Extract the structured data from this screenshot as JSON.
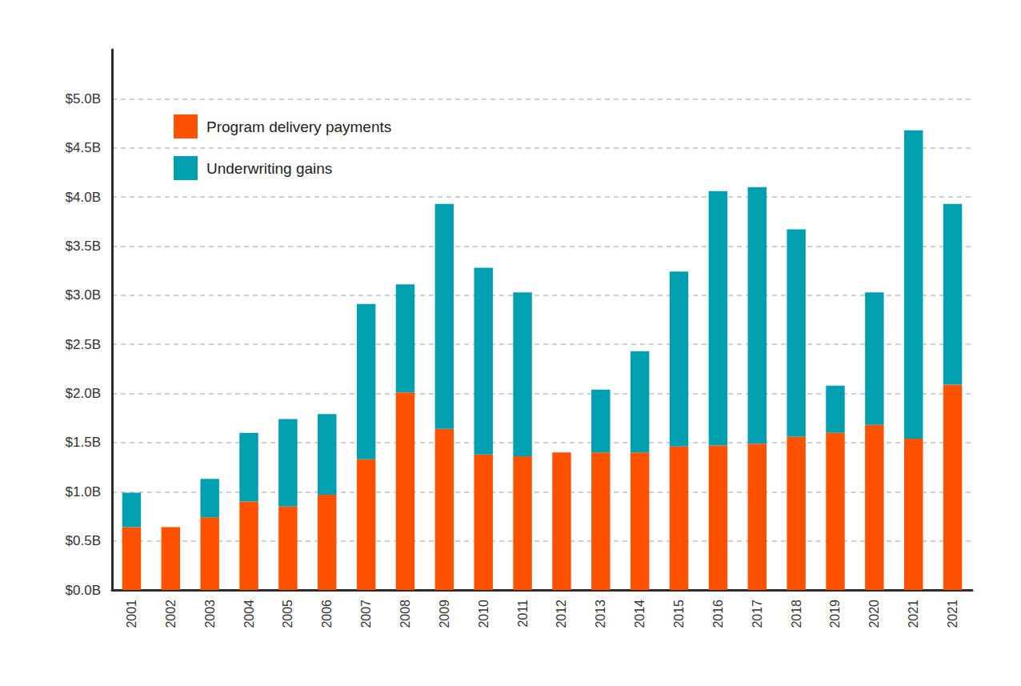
{
  "chart_data": {
    "type": "bar",
    "stacked": true,
    "grid": true,
    "legend": "upper left",
    "categories": [
      "2001",
      "2002",
      "2003",
      "2004",
      "2005",
      "2006",
      "2007",
      "2008",
      "2009",
      "2010",
      "2011",
      "2012",
      "2013",
      "2014",
      "2015",
      "2016",
      "2017",
      "2018",
      "2019",
      "2020",
      "2021",
      "2021"
    ],
    "series": [
      {
        "name": "Program delivery payments",
        "color": "#ff5100",
        "values": [
          0.64,
          0.64,
          0.74,
          0.9,
          0.85,
          0.97,
          1.33,
          2.01,
          1.64,
          1.38,
          1.36,
          1.4,
          1.4,
          1.4,
          1.46,
          1.47,
          1.49,
          1.56,
          1.6,
          1.68,
          1.54,
          2.09
        ]
      },
      {
        "name": "Underwriting gains",
        "color": "#00a0b0",
        "values": [
          0.35,
          0,
          0.39,
          0.7,
          0.89,
          0.82,
          1.58,
          1.1,
          2.29,
          1.9,
          1.67,
          0,
          0.64,
          1.03,
          1.78,
          2.59,
          2.61,
          2.11,
          0.48,
          1.35,
          3.14,
          1.84
        ]
      }
    ],
    "ylim": [
      0,
      5.5
    ],
    "yticks": [
      {
        "value": 0,
        "label": "$0.0B"
      },
      {
        "value": 0.5,
        "label": "$0.5B"
      },
      {
        "value": 1,
        "label": "$1.0B"
      },
      {
        "value": 1.5,
        "label": "$1.5B"
      },
      {
        "value": 2,
        "label": "$2.0B"
      },
      {
        "value": 2.5,
        "label": "$2.5B"
      },
      {
        "value": 3,
        "label": "$3.0B"
      },
      {
        "value": 3.5,
        "label": "$3.5B"
      },
      {
        "value": 4,
        "label": "$4.0B"
      },
      {
        "value": 4.5,
        "label": "$4.5B"
      },
      {
        "value": 5,
        "label": "$5.0B"
      }
    ]
  }
}
